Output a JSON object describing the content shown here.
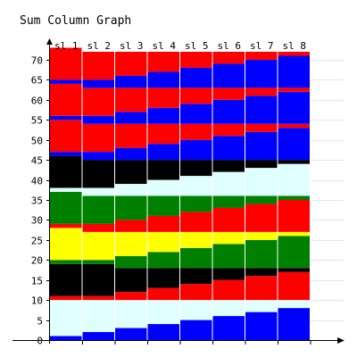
{
  "chart_data": {
    "type": "bar",
    "stacked": true,
    "title": "Sum Column Graph",
    "xlabel": "",
    "ylabel": "",
    "ylim": [
      0,
      72
    ],
    "yticks": [
      0,
      5,
      10,
      15,
      20,
      25,
      30,
      35,
      40,
      45,
      50,
      55,
      60,
      65,
      70
    ],
    "grid": true,
    "categories": [
      "sl 1",
      "sl 2",
      "sl 3",
      "sl 4",
      "sl 5",
      "sl 6",
      "sl 7",
      "sl 8"
    ],
    "series": [
      {
        "color": "#0000ff",
        "values": [
          1,
          2,
          3,
          4,
          5,
          6,
          7,
          8
        ]
      },
      {
        "color": "#e0ffff",
        "values": [
          9,
          8,
          7,
          6,
          5,
          4,
          3,
          2
        ]
      },
      {
        "color": "#ff0000",
        "values": [
          1,
          1,
          2,
          3,
          4,
          5,
          6,
          7
        ]
      },
      {
        "color": "#000000",
        "values": [
          8,
          8,
          6,
          5,
          4,
          3,
          2,
          1
        ]
      },
      {
        "color": "#008000",
        "values": [
          1,
          1,
          3,
          4,
          5,
          6,
          7,
          8
        ]
      },
      {
        "color": "#ffff00",
        "values": [
          8,
          7,
          6,
          5,
          4,
          3,
          2,
          1
        ]
      },
      {
        "color": "#ff0000",
        "values": [
          1,
          2,
          3,
          4,
          5,
          6,
          7,
          8
        ]
      },
      {
        "color": "#008000",
        "values": [
          8,
          7,
          6,
          5,
          4,
          3,
          2,
          1
        ]
      },
      {
        "color": "#e0ffff",
        "values": [
          1,
          2,
          3,
          4,
          5,
          6,
          7,
          8
        ]
      },
      {
        "color": "#000000",
        "values": [
          8,
          7,
          6,
          5,
          4,
          3,
          2,
          1
        ]
      },
      {
        "color": "#0000ff",
        "values": [
          1,
          2,
          3,
          4,
          5,
          6,
          7,
          8
        ]
      },
      {
        "color": "#ff0000",
        "values": [
          8,
          7,
          6,
          5,
          4,
          3,
          2,
          1
        ]
      },
      {
        "color": "#0000ff",
        "values": [
          1,
          2,
          3,
          4,
          5,
          6,
          7,
          8
        ]
      },
      {
        "color": "#ff0000",
        "values": [
          8,
          7,
          6,
          5,
          4,
          3,
          2,
          1
        ]
      },
      {
        "color": "#0000ff",
        "values": [
          1,
          2,
          3,
          4,
          5,
          6,
          7,
          8
        ]
      },
      {
        "color": "#ff0000",
        "values": [
          8,
          7,
          6,
          5,
          4,
          3,
          2,
          1
        ]
      }
    ]
  }
}
